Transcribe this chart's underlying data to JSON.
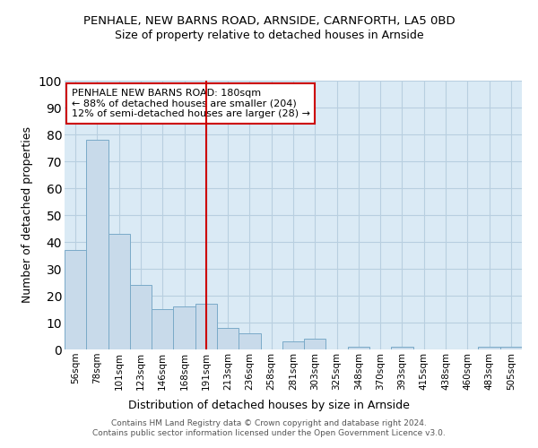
{
  "title1": "PENHALE, NEW BARNS ROAD, ARNSIDE, CARNFORTH, LA5 0BD",
  "title2": "Size of property relative to detached houses in Arnside",
  "xlabel": "Distribution of detached houses by size in Arnside",
  "ylabel": "Number of detached properties",
  "categories": [
    "56sqm",
    "78sqm",
    "101sqm",
    "123sqm",
    "146sqm",
    "168sqm",
    "191sqm",
    "213sqm",
    "236sqm",
    "258sqm",
    "281sqm",
    "303sqm",
    "325sqm",
    "348sqm",
    "370sqm",
    "393sqm",
    "415sqm",
    "438sqm",
    "460sqm",
    "483sqm",
    "505sqm"
  ],
  "values": [
    37,
    78,
    43,
    24,
    15,
    16,
    17,
    8,
    6,
    0,
    3,
    4,
    0,
    1,
    0,
    1,
    0,
    0,
    0,
    1,
    1
  ],
  "bar_color": "#c8daea",
  "bar_edge_color": "#7aaac8",
  "vline_x_idx": 6,
  "vline_color": "#cc0000",
  "annotation_line1": "PENHALE NEW BARNS ROAD: 180sqm",
  "annotation_line2": "← 88% of detached houses are smaller (204)",
  "annotation_line3": "12% of semi-detached houses are larger (28) →",
  "annotation_box_edgecolor": "#cc0000",
  "ylim": [
    0,
    100
  ],
  "yticks": [
    0,
    10,
    20,
    30,
    40,
    50,
    60,
    70,
    80,
    90,
    100
  ],
  "grid_color": "#b8cfe0",
  "background_color": "#daeaf5",
  "footer_line1": "Contains HM Land Registry data © Crown copyright and database right 2024.",
  "footer_line2": "Contains public sector information licensed under the Open Government Licence v3.0."
}
